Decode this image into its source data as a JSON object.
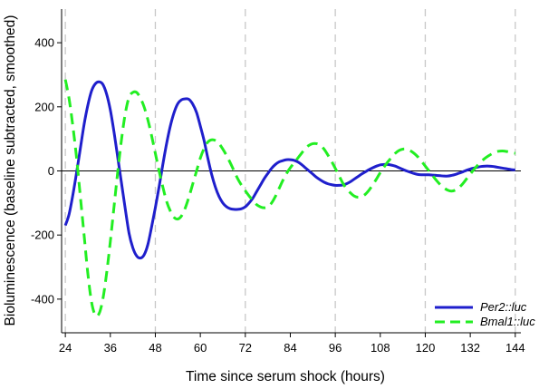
{
  "chart_data": {
    "type": "line",
    "title": "",
    "xlabel": "Time since serum shock (hours)",
    "ylabel": "Bioluminescence (baseline subtracted, smoothed)",
    "xlim": [
      23,
      145.5
    ],
    "ylim": [
      -505,
      505
    ],
    "xticks": [
      24,
      36,
      48,
      60,
      72,
      84,
      96,
      108,
      120,
      132,
      144
    ],
    "yticks": [
      -400,
      -200,
      0,
      200,
      400
    ],
    "vertical_gridlines": [
      24,
      48,
      72,
      96,
      120,
      144
    ],
    "zero_line": true,
    "legend_position": "bottom-right",
    "series": [
      {
        "name": "Per2::luc",
        "color": "#1f1fcc",
        "style": "solid",
        "points": [
          [
            24,
            -170
          ],
          [
            25,
            -135
          ],
          [
            26,
            -75
          ],
          [
            27,
            -5
          ],
          [
            28,
            70
          ],
          [
            29,
            145
          ],
          [
            30,
            205
          ],
          [
            31,
            250
          ],
          [
            32,
            272
          ],
          [
            33,
            278
          ],
          [
            34,
            270
          ],
          [
            35,
            240
          ],
          [
            36,
            190
          ],
          [
            37,
            120
          ],
          [
            38,
            40
          ],
          [
            39,
            -40
          ],
          [
            40,
            -120
          ],
          [
            41,
            -195
          ],
          [
            42,
            -240
          ],
          [
            43,
            -265
          ],
          [
            44,
            -272
          ],
          [
            45,
            -262
          ],
          [
            46,
            -230
          ],
          [
            47,
            -175
          ],
          [
            48,
            -115
          ],
          [
            49,
            -50
          ],
          [
            50,
            20
          ],
          [
            51,
            85
          ],
          [
            52,
            140
          ],
          [
            53,
            182
          ],
          [
            54,
            210
          ],
          [
            55,
            222
          ],
          [
            56,
            225
          ],
          [
            57,
            223
          ],
          [
            58,
            208
          ],
          [
            59,
            182
          ],
          [
            60,
            140
          ],
          [
            61,
            95
          ],
          [
            62,
            40
          ],
          [
            63,
            -10
          ],
          [
            64,
            -50
          ],
          [
            65,
            -80
          ],
          [
            66,
            -100
          ],
          [
            67,
            -112
          ],
          [
            68,
            -118
          ],
          [
            69,
            -120
          ],
          [
            70,
            -120
          ],
          [
            71,
            -118
          ],
          [
            72,
            -112
          ],
          [
            73,
            -100
          ],
          [
            74,
            -85
          ],
          [
            75,
            -65
          ],
          [
            76,
            -45
          ],
          [
            77,
            -25
          ],
          [
            78,
            -8
          ],
          [
            79,
            8
          ],
          [
            80,
            20
          ],
          [
            81,
            28
          ],
          [
            82,
            32
          ],
          [
            83,
            35
          ],
          [
            84,
            35
          ],
          [
            85,
            33
          ],
          [
            86,
            28
          ],
          [
            87,
            20
          ],
          [
            88,
            10
          ],
          [
            89,
            0
          ],
          [
            90,
            -10
          ],
          [
            91,
            -20
          ],
          [
            92,
            -28
          ],
          [
            93,
            -35
          ],
          [
            94,
            -40
          ],
          [
            95,
            -43
          ],
          [
            96,
            -45
          ],
          [
            97,
            -45
          ],
          [
            98,
            -44
          ],
          [
            99,
            -40
          ],
          [
            100,
            -34
          ],
          [
            101,
            -26
          ],
          [
            102,
            -18
          ],
          [
            103,
            -10
          ],
          [
            104,
            -3
          ],
          [
            105,
            4
          ],
          [
            106,
            10
          ],
          [
            107,
            15
          ],
          [
            108,
            19
          ],
          [
            109,
            20
          ],
          [
            110,
            20
          ],
          [
            111,
            18
          ],
          [
            112,
            15
          ],
          [
            113,
            10
          ],
          [
            114,
            5
          ],
          [
            115,
            0
          ],
          [
            116,
            -4
          ],
          [
            117,
            -8
          ],
          [
            118,
            -11
          ],
          [
            119,
            -12
          ],
          [
            120,
            -12
          ],
          [
            121,
            -12
          ],
          [
            122,
            -13
          ],
          [
            123,
            -14
          ],
          [
            124,
            -15
          ],
          [
            125,
            -16
          ],
          [
            126,
            -16
          ],
          [
            127,
            -14
          ],
          [
            128,
            -11
          ],
          [
            129,
            -7
          ],
          [
            130,
            -3
          ],
          [
            131,
            2
          ],
          [
            132,
            6
          ],
          [
            133,
            9
          ],
          [
            134,
            12
          ],
          [
            135,
            14
          ],
          [
            136,
            15
          ],
          [
            137,
            15
          ],
          [
            138,
            14
          ],
          [
            139,
            12
          ],
          [
            140,
            10
          ],
          [
            141,
            8
          ],
          [
            142,
            6
          ],
          [
            143,
            4
          ],
          [
            144,
            3
          ]
        ]
      },
      {
        "name": "Bmal1::luc",
        "color": "#22ee22",
        "style": "dashed",
        "points": [
          [
            24,
            285
          ],
          [
            25,
            225
          ],
          [
            26,
            140
          ],
          [
            27,
            40
          ],
          [
            28,
            -80
          ],
          [
            29,
            -200
          ],
          [
            30,
            -320
          ],
          [
            31,
            -410
          ],
          [
            32,
            -450
          ],
          [
            33,
            -445
          ],
          [
            34,
            -400
          ],
          [
            35,
            -320
          ],
          [
            36,
            -220
          ],
          [
            37,
            -110
          ],
          [
            38,
            0
          ],
          [
            39,
            100
          ],
          [
            40,
            180
          ],
          [
            41,
            230
          ],
          [
            42,
            245
          ],
          [
            43,
            245
          ],
          [
            44,
            228
          ],
          [
            45,
            200
          ],
          [
            46,
            160
          ],
          [
            47,
            110
          ],
          [
            48,
            55
          ],
          [
            49,
            0
          ],
          [
            50,
            -50
          ],
          [
            51,
            -95
          ],
          [
            52,
            -125
          ],
          [
            53,
            -145
          ],
          [
            54,
            -150
          ],
          [
            55,
            -140
          ],
          [
            56,
            -115
          ],
          [
            57,
            -80
          ],
          [
            58,
            -40
          ],
          [
            59,
            0
          ],
          [
            60,
            40
          ],
          [
            61,
            70
          ],
          [
            62,
            90
          ],
          [
            63,
            97
          ],
          [
            64,
            95
          ],
          [
            65,
            85
          ],
          [
            66,
            68
          ],
          [
            67,
            48
          ],
          [
            68,
            25
          ],
          [
            69,
            0
          ],
          [
            70,
            -25
          ],
          [
            71,
            -45
          ],
          [
            72,
            -62
          ],
          [
            73,
            -78
          ],
          [
            74,
            -92
          ],
          [
            75,
            -105
          ],
          [
            76,
            -112
          ],
          [
            77,
            -115
          ],
          [
            78,
            -112
          ],
          [
            79,
            -100
          ],
          [
            80,
            -80
          ],
          [
            81,
            -55
          ],
          [
            82,
            -30
          ],
          [
            83,
            -8
          ],
          [
            84,
            10
          ],
          [
            85,
            25
          ],
          [
            86,
            40
          ],
          [
            87,
            55
          ],
          [
            88,
            70
          ],
          [
            89,
            80
          ],
          [
            90,
            85
          ],
          [
            91,
            85
          ],
          [
            92,
            80
          ],
          [
            93,
            68
          ],
          [
            94,
            50
          ],
          [
            95,
            30
          ],
          [
            96,
            8
          ],
          [
            97,
            -15
          ],
          [
            98,
            -38
          ],
          [
            99,
            -55
          ],
          [
            100,
            -68
          ],
          [
            101,
            -78
          ],
          [
            102,
            -82
          ],
          [
            103,
            -80
          ],
          [
            104,
            -73
          ],
          [
            105,
            -60
          ],
          [
            106,
            -43
          ],
          [
            107,
            -25
          ],
          [
            108,
            -5
          ],
          [
            109,
            12
          ],
          [
            110,
            28
          ],
          [
            111,
            42
          ],
          [
            112,
            55
          ],
          [
            113,
            64
          ],
          [
            114,
            68
          ],
          [
            115,
            68
          ],
          [
            116,
            63
          ],
          [
            117,
            55
          ],
          [
            118,
            44
          ],
          [
            119,
            30
          ],
          [
            120,
            15
          ],
          [
            121,
            0
          ],
          [
            122,
            -15
          ],
          [
            123,
            -30
          ],
          [
            124,
            -43
          ],
          [
            125,
            -53
          ],
          [
            126,
            -60
          ],
          [
            127,
            -63
          ],
          [
            128,
            -60
          ],
          [
            129,
            -52
          ],
          [
            130,
            -40
          ],
          [
            131,
            -25
          ],
          [
            132,
            -10
          ],
          [
            133,
            5
          ],
          [
            134,
            18
          ],
          [
            135,
            30
          ],
          [
            136,
            40
          ],
          [
            137,
            48
          ],
          [
            138,
            55
          ],
          [
            139,
            60
          ],
          [
            140,
            62
          ],
          [
            141,
            62
          ],
          [
            142,
            60
          ],
          [
            143,
            57
          ],
          [
            144,
            55
          ]
        ]
      }
    ]
  }
}
